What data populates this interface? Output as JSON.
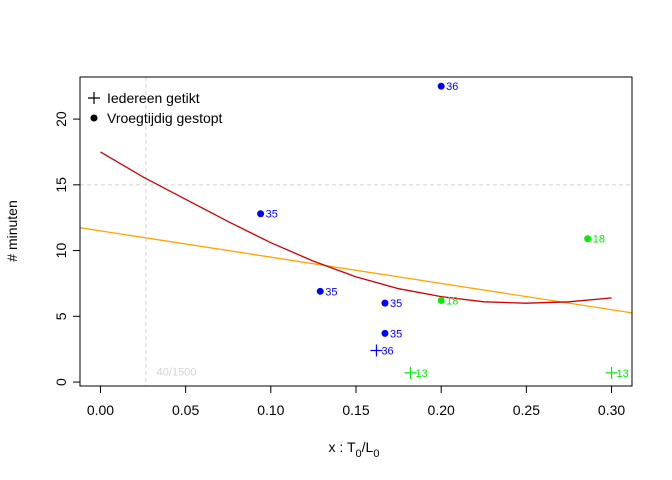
{
  "chart_data": {
    "type": "scatter",
    "title": "",
    "xlabel": "x",
    "xlabel_parts": {
      "prefix": "x : T",
      "sub1": "0",
      "slash": "/",
      "mid": "L",
      "sub2": "0"
    },
    "ylabel": "# minuten",
    "xlim": [
      -0.012,
      0.312
    ],
    "ylim": [
      -0.3,
      23.2
    ],
    "xticks": [
      0.0,
      0.05,
      0.1,
      0.15,
      0.2,
      0.25,
      0.3
    ],
    "xtick_labels": [
      "0.00",
      "0.05",
      "0.10",
      "0.15",
      "0.20",
      "0.25",
      "0.30"
    ],
    "yticks": [
      0,
      5,
      10,
      15,
      20
    ],
    "ytick_labels": [
      "0",
      "5",
      "10",
      "15",
      "20"
    ],
    "grid": false,
    "legend_position": "top-left",
    "legend": [
      {
        "label": "Iedereen getikt",
        "symbol": "plus"
      },
      {
        "label": "Vroegtijdig gestopt",
        "symbol": "dot"
      }
    ],
    "colors": {
      "blue": "#0000ff",
      "green": "#00ee00",
      "orange": "#ffa500",
      "red": "#cc0000",
      "ref": "#d3d3d3"
    },
    "reference_lines": {
      "vertical_x": 0.0267,
      "horizontal_y": 15,
      "annotation": "40/1500",
      "annotation_x": 0.033,
      "annotation_y": 0.8
    },
    "points": [
      {
        "x": 0.094,
        "y": 12.8,
        "label": "35",
        "symbol": "dot",
        "color": "blue"
      },
      {
        "x": 0.129,
        "y": 6.9,
        "label": "35",
        "symbol": "dot",
        "color": "blue"
      },
      {
        "x": 0.167,
        "y": 6.0,
        "label": "35",
        "symbol": "dot",
        "color": "blue"
      },
      {
        "x": 0.167,
        "y": 3.7,
        "label": "35",
        "symbol": "dot",
        "color": "blue"
      },
      {
        "x": 0.2,
        "y": 22.5,
        "label": "36",
        "symbol": "dot",
        "color": "blue"
      },
      {
        "x": 0.162,
        "y": 2.4,
        "label": "36",
        "symbol": "plus",
        "color": "blue"
      },
      {
        "x": 0.2,
        "y": 6.2,
        "label": "18",
        "symbol": "dot",
        "color": "green"
      },
      {
        "x": 0.286,
        "y": 10.9,
        "label": "18",
        "symbol": "dot",
        "color": "green"
      },
      {
        "x": 0.182,
        "y": 0.7,
        "label": "13",
        "symbol": "plus",
        "color": "green"
      },
      {
        "x": 0.3,
        "y": 0.7,
        "label": "13",
        "symbol": "plus",
        "color": "green"
      }
    ],
    "linear_fit": {
      "color": "orange",
      "intercept": 11.5,
      "slope": -20.0
    },
    "curve_fit": {
      "color": "red",
      "x": [
        0.0,
        0.025,
        0.05,
        0.075,
        0.1,
        0.125,
        0.15,
        0.175,
        0.2,
        0.225,
        0.25,
        0.275,
        0.3
      ],
      "y": [
        17.5,
        15.6,
        13.9,
        12.2,
        10.6,
        9.2,
        8.0,
        7.1,
        6.5,
        6.1,
        6.0,
        6.1,
        6.4
      ]
    }
  }
}
